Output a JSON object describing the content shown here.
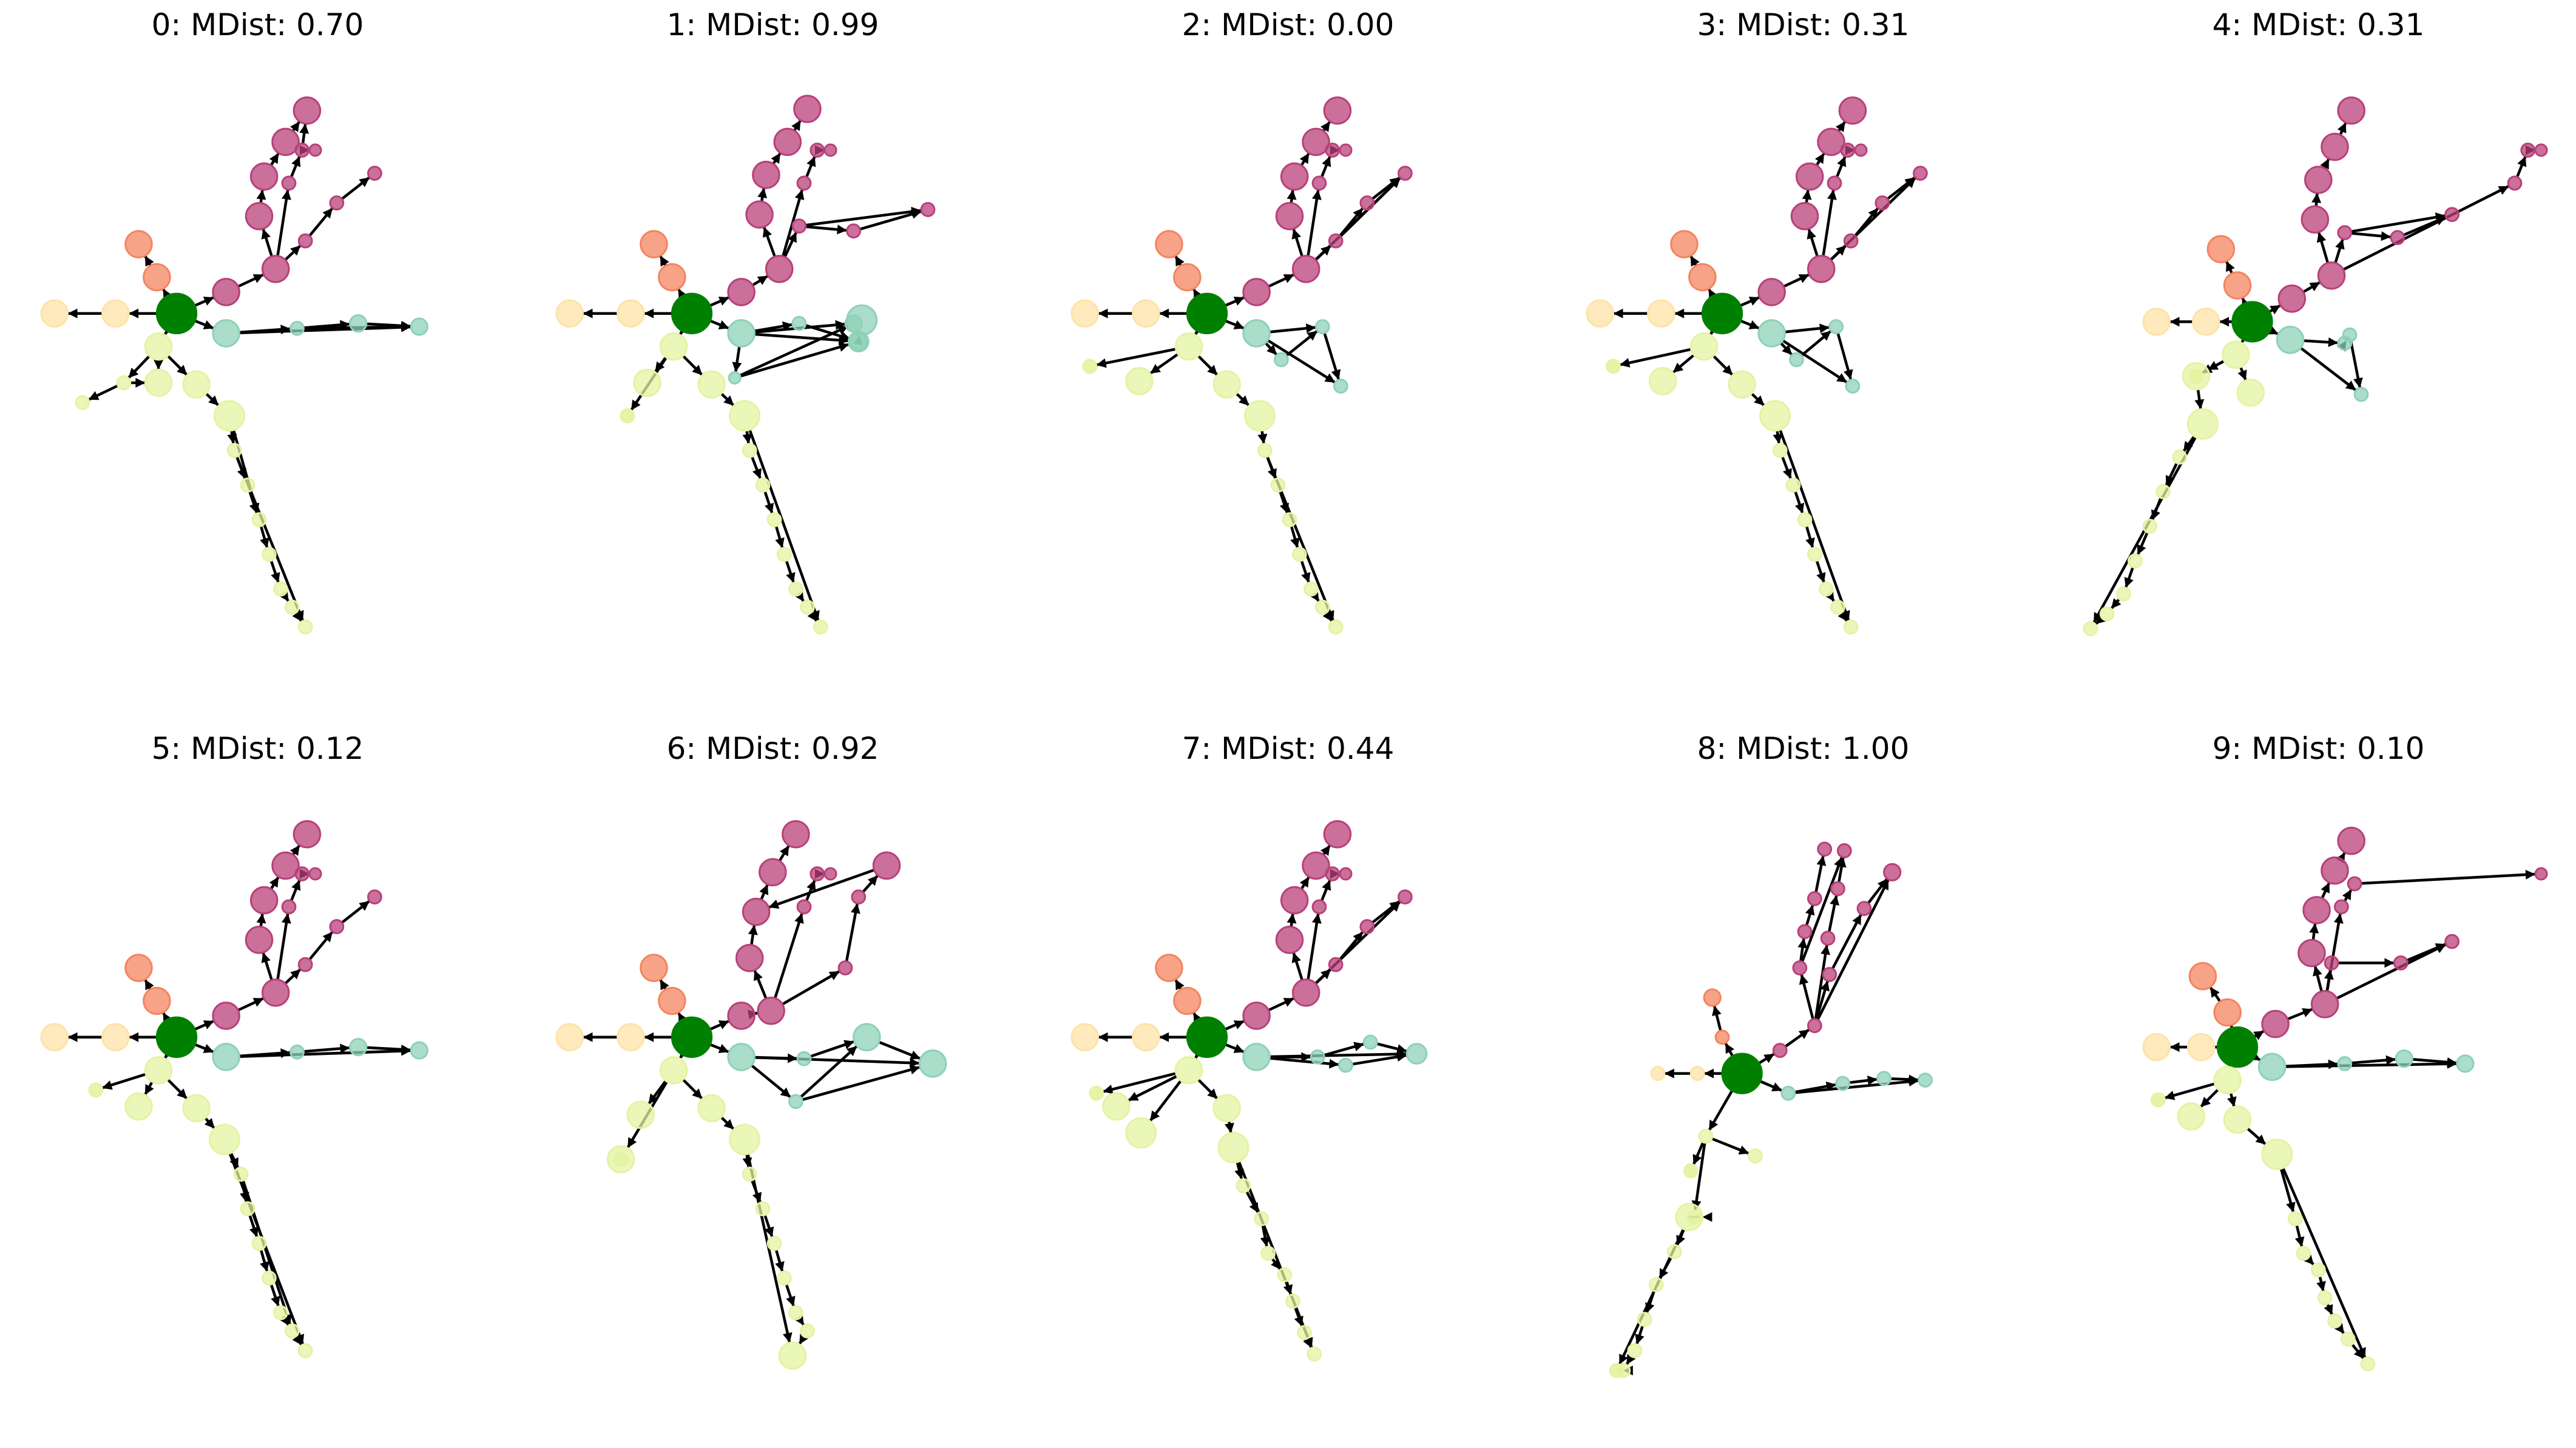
{
  "figure": {
    "panels": [
      {
        "title": "0: MDist: 0.70"
      },
      {
        "title": "1: MDist: 0.99"
      },
      {
        "title": "2: MDist: 0.00"
      },
      {
        "title": "3: MDist: 0.31"
      },
      {
        "title": "4: MDist: 0.31"
      },
      {
        "title": "5: MDist: 0.12"
      },
      {
        "title": "6: MDist: 0.92"
      },
      {
        "title": "7: MDist: 0.44"
      },
      {
        "title": "8: MDist: 1.00"
      },
      {
        "title": "9: MDist: 0.10"
      }
    ]
  },
  "colors": {
    "root": "#008000",
    "branch_orange": "#f4845f",
    "branch_peach": "#fde3a7",
    "branch_magenta": "#b8407a",
    "branch_teal": "#8ed1b8",
    "branch_lime": "#e4f3a2",
    "edge": "#000000"
  }
}
